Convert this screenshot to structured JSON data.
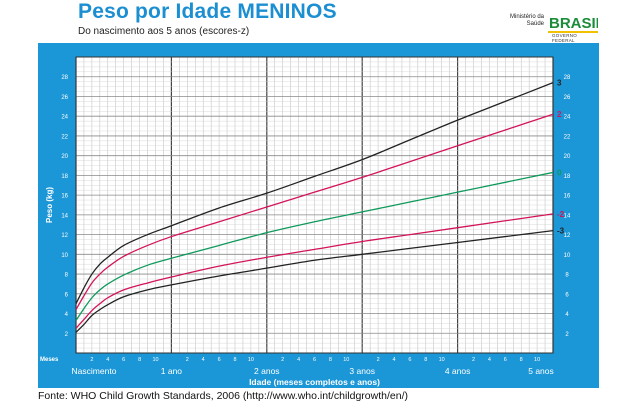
{
  "header": {
    "title": "Peso por Idade MENINOS",
    "subtitle": "Do nascimento aos 5 anos (escores-z)",
    "ministry_label": "Ministério da Saúde",
    "gov_label": "GOVERNO FEDERAL",
    "flag_text": "BRASIL"
  },
  "footer": {
    "source": "Fonte: WHO Child Growth Standards, 2006 (http://www.who.int/childgrowth/en/)"
  },
  "colors": {
    "panel_blue": "#1b96d6",
    "title_blue": "#1b8fd2",
    "curve_black": "#222222",
    "curve_red": "#d4145a",
    "curve_green": "#0f9a5c"
  },
  "chart_data": {
    "type": "line",
    "xlabel": "Idade (meses completos e anos)",
    "ylabel": "Peso (kg)",
    "months_label": "Meses",
    "xlim": [
      0,
      60
    ],
    "ylim": [
      0,
      30
    ],
    "y_ticks": [
      2,
      4,
      6,
      8,
      10,
      12,
      14,
      16,
      18,
      20,
      22,
      24,
      26,
      28
    ],
    "month_tick_labels": [
      "2",
      "4",
      "6",
      "8",
      "10"
    ],
    "year_labels": [
      {
        "month": 0,
        "label": "Nascimento"
      },
      {
        "month": 12,
        "label": "1 ano"
      },
      {
        "month": 24,
        "label": "2 anos"
      },
      {
        "month": 36,
        "label": "3 anos"
      },
      {
        "month": 48,
        "label": "4 anos"
      },
      {
        "month": 60,
        "label": "5 anos"
      }
    ],
    "x": [
      0,
      1,
      2,
      3,
      4,
      6,
      9,
      12,
      18,
      24,
      30,
      36,
      42,
      48,
      54,
      60
    ],
    "series": [
      {
        "name": "3",
        "color": "#222222",
        "values": [
          5.0,
          6.6,
          8.0,
          9.0,
          9.7,
          10.9,
          12.0,
          12.9,
          14.7,
          16.2,
          17.9,
          19.6,
          21.6,
          23.6,
          25.5,
          27.4
        ]
      },
      {
        "name": "2",
        "color": "#d4145a",
        "values": [
          4.4,
          5.8,
          7.1,
          8.0,
          8.7,
          9.8,
          10.9,
          11.8,
          13.3,
          14.8,
          16.3,
          17.8,
          19.4,
          21.0,
          22.6,
          24.2
        ]
      },
      {
        "name": "0",
        "color": "#0f9a5c",
        "values": [
          3.3,
          4.5,
          5.6,
          6.4,
          7.0,
          7.9,
          8.9,
          9.6,
          10.9,
          12.2,
          13.3,
          14.3,
          15.3,
          16.3,
          17.3,
          18.3
        ]
      },
      {
        "name": "-2",
        "color": "#d4145a",
        "values": [
          2.5,
          3.4,
          4.3,
          5.0,
          5.6,
          6.4,
          7.1,
          7.7,
          8.8,
          9.7,
          10.5,
          11.3,
          12.0,
          12.7,
          13.4,
          14.1
        ]
      },
      {
        "name": "-3",
        "color": "#222222",
        "values": [
          2.1,
          2.9,
          3.8,
          4.4,
          4.9,
          5.7,
          6.4,
          6.9,
          7.8,
          8.6,
          9.4,
          10.0,
          10.6,
          11.2,
          11.8,
          12.4
        ]
      }
    ]
  }
}
